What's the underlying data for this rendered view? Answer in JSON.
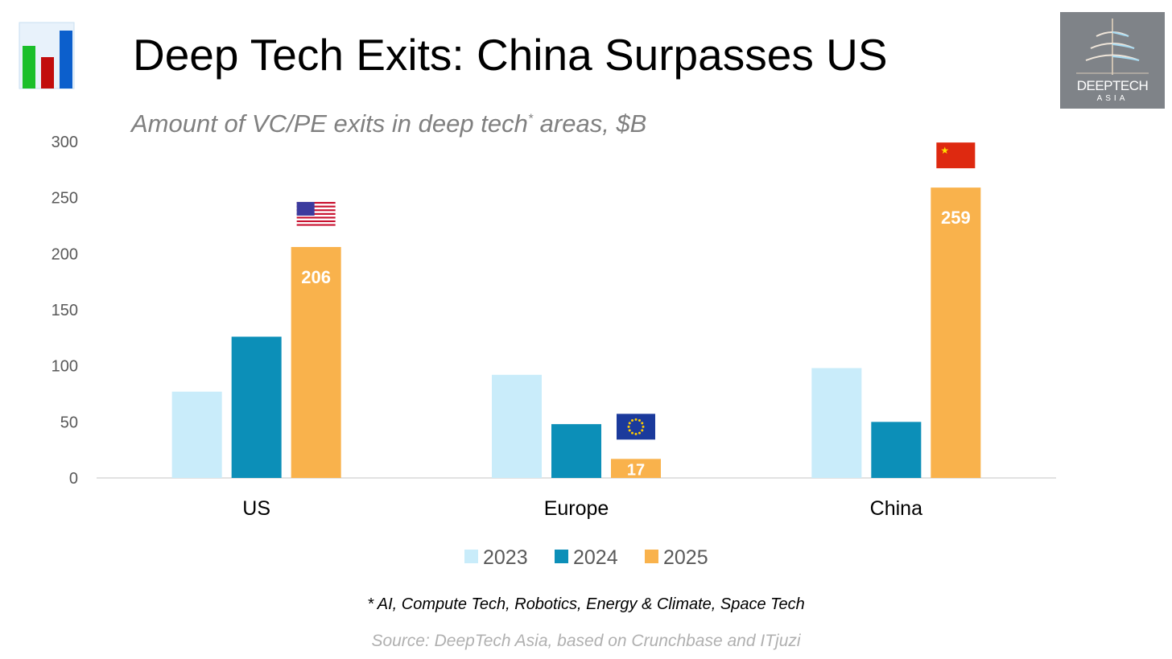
{
  "header": {
    "title": "Deep Tech Exits: China Surpasses US",
    "subtitle_main": "Amount of VC/PE exits in deep tech",
    "subtitle_sup": "*",
    "subtitle_end": " areas, $B",
    "chart_icon": "bar-chart-icon",
    "logo_text_1": "DEEPTECH",
    "logo_text_2": "ASIA"
  },
  "chart_data": {
    "type": "bar",
    "title": "Deep Tech Exits: China Surpasses US",
    "subtitle": "Amount of VC/PE exits in deep tech* areas, $B",
    "xlabel": "",
    "ylabel": "",
    "ylim": [
      0,
      300
    ],
    "yticks": [
      0,
      50,
      100,
      150,
      200,
      250,
      300
    ],
    "grid": false,
    "legend_position": "bottom",
    "categories": [
      "US",
      "Europe",
      "China"
    ],
    "flags": [
      "us-flag-icon",
      "eu-flag-icon",
      "china-flag-icon"
    ],
    "series": [
      {
        "name": "2023",
        "color": "#c9ecfa",
        "values": [
          77,
          92,
          98
        ]
      },
      {
        "name": "2024",
        "color": "#0c8fb8",
        "values": [
          126,
          48,
          50
        ]
      },
      {
        "name": "2025",
        "color": "#f9b24c",
        "values": [
          206,
          17,
          259
        ],
        "labels": [
          "206",
          "17",
          "259"
        ]
      }
    ]
  },
  "footer": {
    "footnote": "* AI, Compute Tech, Robotics, Energy & Climate, Space Tech",
    "source": "Source: DeepTech Asia, based on Crunchbase and ITjuzi"
  }
}
